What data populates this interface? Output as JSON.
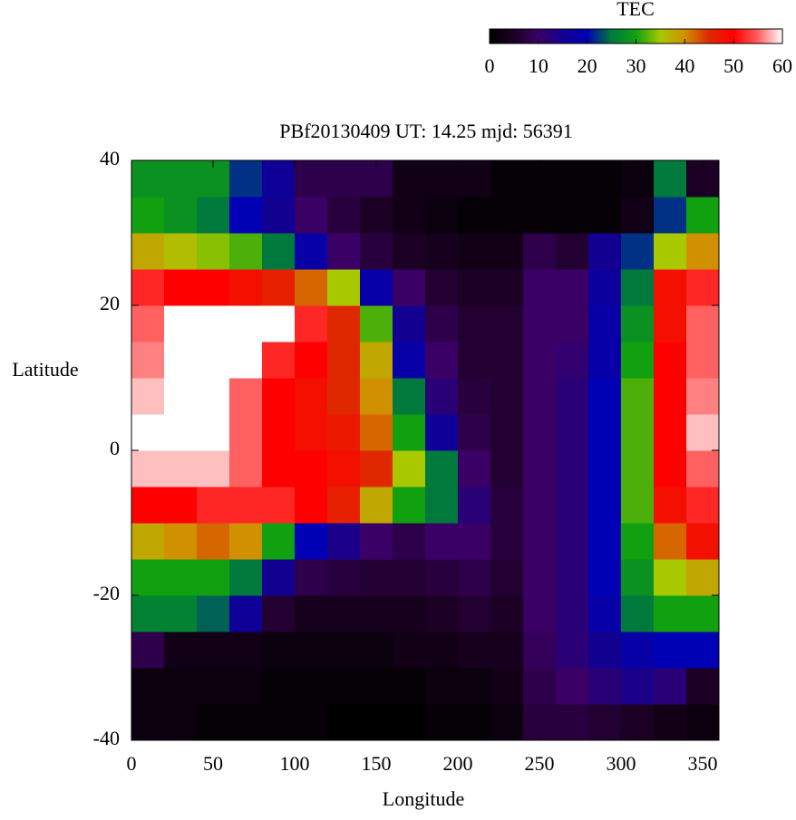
{
  "chart_data": {
    "type": "heatmap",
    "title": "PBf20130409  UT: 14.25  mjd: 56391",
    "xlabel": "Longitude",
    "ylabel": "Latitude",
    "xlim": [
      0,
      360
    ],
    "ylim": [
      -40,
      40
    ],
    "xticks": [
      0,
      50,
      100,
      150,
      200,
      250,
      300,
      350
    ],
    "yticks": [
      -40,
      -20,
      0,
      20,
      40
    ],
    "xbins": [
      0,
      20,
      40,
      60,
      80,
      100,
      120,
      140,
      160,
      180,
      200,
      220,
      240,
      260,
      280,
      300,
      320,
      340,
      360
    ],
    "ybins": [
      -40,
      -35,
      -30,
      -25,
      -20,
      -15,
      -10,
      -5,
      0,
      5,
      10,
      15,
      20,
      25,
      30,
      35,
      40
    ],
    "z": [
      [
        2,
        2,
        1,
        1,
        1,
        1,
        0,
        0,
        0,
        1,
        1,
        2,
        7,
        7,
        6,
        5,
        3,
        2
      ],
      [
        2,
        2,
        2,
        2,
        1,
        1,
        1,
        1,
        1,
        2,
        2,
        3,
        8,
        10,
        12,
        14,
        12,
        5
      ],
      [
        8,
        3,
        3,
        3,
        2,
        2,
        2,
        2,
        3,
        3,
        4,
        4,
        9,
        12,
        15,
        18,
        20,
        20
      ],
      [
        26,
        26,
        24,
        16,
        6,
        4,
        4,
        4,
        4,
        5,
        6,
        5,
        10,
        12,
        18,
        25,
        30,
        30
      ],
      [
        30,
        30,
        30,
        25,
        15,
        8,
        7,
        6,
        6,
        7,
        8,
        6,
        10,
        12,
        20,
        28,
        35,
        38
      ],
      [
        38,
        40,
        42,
        40,
        30,
        20,
        14,
        10,
        8,
        10,
        10,
        7,
        10,
        12,
        20,
        30,
        42,
        48
      ],
      [
        50,
        50,
        52,
        52,
        52,
        50,
        46,
        38,
        30,
        25,
        12,
        7,
        10,
        12,
        20,
        32,
        48,
        52
      ],
      [
        58,
        58,
        58,
        55,
        50,
        50,
        48,
        45,
        35,
        25,
        10,
        6,
        10,
        12,
        20,
        32,
        50,
        55
      ],
      [
        60,
        60,
        60,
        55,
        50,
        48,
        47,
        42,
        30,
        16,
        8,
        6,
        10,
        12,
        20,
        32,
        50,
        58
      ],
      [
        58,
        60,
        60,
        55,
        50,
        48,
        45,
        40,
        25,
        12,
        7,
        6,
        10,
        12,
        20,
        32,
        50,
        56
      ],
      [
        56,
        60,
        60,
        60,
        52,
        50,
        45,
        38,
        18,
        10,
        6,
        6,
        10,
        11,
        18,
        30,
        50,
        55
      ],
      [
        55,
        60,
        60,
        60,
        60,
        52,
        45,
        32,
        15,
        8,
        6,
        6,
        10,
        10,
        18,
        28,
        48,
        55
      ],
      [
        52,
        50,
        50,
        48,
        46,
        42,
        35,
        18,
        10,
        6,
        5,
        5,
        10,
        10,
        17,
        25,
        48,
        52
      ],
      [
        38,
        36,
        34,
        32,
        25,
        18,
        10,
        7,
        5,
        4,
        3,
        3,
        8,
        6,
        15,
        22,
        35,
        40
      ],
      [
        30,
        28,
        25,
        20,
        15,
        10,
        7,
        5,
        3,
        2,
        1,
        1,
        1,
        1,
        1,
        3,
        22,
        30
      ],
      [
        28,
        28,
        28,
        22,
        16,
        8,
        8,
        8,
        3,
        3,
        3,
        1,
        1,
        1,
        1,
        2,
        25,
        5
      ]
    ],
    "colorbar": {
      "label": "TEC",
      "lim": [
        0,
        60
      ],
      "ticks": [
        0,
        10,
        20,
        30,
        40,
        50,
        60
      ]
    },
    "colorscale": [
      [
        0,
        "#000000"
      ],
      [
        5,
        "#1c0024"
      ],
      [
        10,
        "#3a0066"
      ],
      [
        15,
        "#120090"
      ],
      [
        20,
        "#0000b4"
      ],
      [
        25,
        "#007a3c"
      ],
      [
        30,
        "#10a010"
      ],
      [
        35,
        "#a8c800"
      ],
      [
        40,
        "#d09000"
      ],
      [
        45,
        "#e02800"
      ],
      [
        50,
        "#ff0000"
      ],
      [
        55,
        "#ff6060"
      ],
      [
        60,
        "#ffffff"
      ]
    ]
  }
}
